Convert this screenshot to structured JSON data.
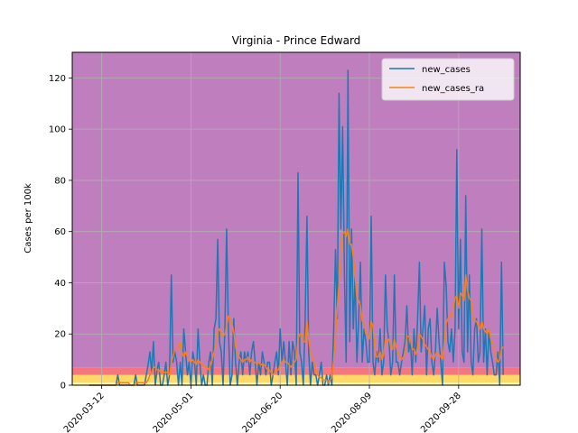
{
  "chart_data": {
    "type": "line",
    "title": "Virginia - Prince Edward",
    "xlabel": "",
    "ylabel": "Cases per 100k",
    "x_tick_labels": [
      "2020-03-12",
      "2020-05-01",
      "2020-06-20",
      "2020-08-09",
      "2020-09-28"
    ],
    "y_ticks": [
      0,
      20,
      40,
      60,
      80,
      100,
      120
    ],
    "ylim": [
      0,
      130
    ],
    "grid": true,
    "legend_position": "top-right",
    "background_bands": [
      {
        "from": 0,
        "to": 1,
        "color": "#fff7a0"
      },
      {
        "from": 1,
        "to": 4,
        "color": "#ffd966"
      },
      {
        "from": 4,
        "to": 7,
        "color": "#f4777f"
      },
      {
        "from": 7,
        "to": 130,
        "color": "#bf7fbf"
      }
    ],
    "start_date": "2020-03-05",
    "series": [
      {
        "name": "new_cases",
        "color": "#1f77b4",
        "values": [
          0,
          0,
          0,
          0,
          0,
          0,
          0,
          0,
          0,
          0,
          0,
          0,
          0,
          0,
          0,
          0,
          4,
          0,
          0,
          0,
          0,
          0,
          0,
          0,
          0,
          0,
          4,
          0,
          0,
          0,
          0,
          0,
          4,
          8,
          13,
          5,
          17,
          0,
          6,
          9,
          0,
          0,
          4,
          9,
          0,
          4,
          43,
          9,
          13,
          9,
          0,
          9,
          0,
          22,
          13,
          4,
          9,
          0,
          13,
          9,
          0,
          22,
          9,
          0,
          4,
          0,
          0,
          9,
          13,
          0,
          22,
          26,
          57,
          17,
          13,
          0,
          22,
          61,
          22,
          0,
          4,
          26,
          9,
          0,
          9,
          13,
          4,
          13,
          9,
          13,
          4,
          13,
          17,
          9,
          0,
          9,
          4,
          13,
          9,
          4,
          9,
          9,
          0,
          4,
          9,
          13,
          4,
          22,
          9,
          17,
          9,
          0,
          17,
          4,
          17,
          13,
          0,
          83,
          13,
          9,
          0,
          26,
          66,
          13,
          0,
          9,
          4,
          4,
          0,
          4,
          9,
          0,
          0,
          4,
          0,
          4,
          0,
          22,
          53,
          26,
          114,
          61,
          101,
          43,
          9,
          123,
          17,
          61,
          22,
          43,
          9,
          26,
          48,
          9,
          22,
          17,
          9,
          9,
          66,
          9,
          4,
          13,
          9,
          22,
          4,
          9,
          43,
          22,
          17,
          4,
          9,
          43,
          9,
          9,
          4,
          9,
          13,
          17,
          31,
          13,
          17,
          4,
          22,
          9,
          26,
          48,
          13,
          22,
          31,
          4,
          22,
          26,
          9,
          4,
          13,
          30,
          17,
          9,
          0,
          48,
          39,
          17,
          13,
          22,
          9,
          22,
          92,
          22,
          57,
          13,
          9,
          74,
          13,
          43,
          9,
          4,
          22,
          26,
          9,
          13,
          61,
          9,
          22,
          4,
          22,
          13,
          9,
          4,
          4,
          13,
          0,
          48,
          4
        ]
      },
      {
        "name": "new_cases_ra",
        "color": "#ff7f0e",
        "values": [
          0,
          0,
          0,
          0,
          0,
          0,
          0,
          0,
          0,
          0,
          0,
          0,
          0,
          0,
          0,
          0,
          1,
          1,
          1,
          1,
          1,
          1,
          1,
          0,
          0,
          0,
          1,
          1,
          1,
          1,
          1,
          1,
          1,
          2,
          4,
          5,
          7,
          7,
          6,
          6,
          5,
          5,
          5,
          5,
          5,
          4,
          9,
          11,
          14,
          14,
          15,
          17,
          13,
          11,
          13,
          11,
          10,
          9,
          10,
          9,
          8,
          10,
          9,
          8,
          8,
          7,
          7,
          6,
          8,
          10,
          13,
          16,
          21,
          22,
          20,
          19,
          20,
          23,
          27,
          26,
          24,
          21,
          15,
          12,
          11,
          10,
          9,
          10,
          10,
          11,
          9,
          10,
          9,
          9,
          8,
          9,
          8,
          8,
          8,
          7,
          6,
          6,
          5,
          4,
          5,
          6,
          6,
          8,
          9,
          10,
          9,
          9,
          8,
          7,
          8,
          9,
          10,
          18,
          20,
          20,
          17,
          17,
          25,
          18,
          13,
          11,
          9,
          6,
          4,
          3,
          3,
          2,
          2,
          2,
          1,
          2,
          3,
          10,
          20,
          30,
          40,
          50,
          59,
          60,
          58,
          61,
          55,
          55,
          50,
          43,
          34,
          33,
          31,
          25,
          24,
          20,
          20,
          18,
          25,
          23,
          15,
          11,
          11,
          13,
          10,
          12,
          18,
          17,
          18,
          15,
          14,
          18,
          15,
          12,
          11,
          10,
          11,
          12,
          19,
          19,
          18,
          14,
          14,
          12,
          15,
          20,
          19,
          18,
          16,
          15,
          14,
          13,
          11,
          10,
          12,
          13,
          12,
          11,
          10,
          17,
          24,
          26,
          27,
          27,
          30,
          34,
          35,
          30,
          36,
          35,
          33,
          43,
          37,
          34,
          33,
          27,
          25,
          25,
          23,
          22,
          25,
          22,
          21,
          20,
          22,
          18,
          16,
          14,
          11,
          9,
          10,
          14,
          15
        ]
      }
    ]
  }
}
